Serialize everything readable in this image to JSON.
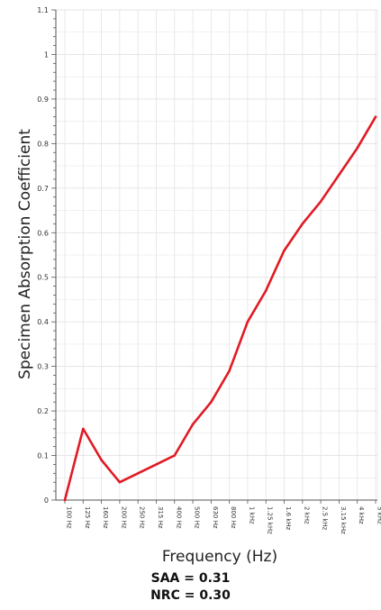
{
  "chart_data": {
    "type": "line",
    "title": "",
    "xlabel": "Frequency (Hz)",
    "ylabel": "Specimen Absorption Coefficient",
    "categories": [
      "100 Hz",
      "125 Hz",
      "160 Hz",
      "200 Hz",
      "250 Hz",
      "315 Hz",
      "400 Hz",
      "500 Hz",
      "630 Hz",
      "800 Hz",
      "1 kHz",
      "1.25 kHz",
      "1.6 kHz",
      "2 kHz",
      "2.5 kHz",
      "3.15 kHz",
      "4 kHz",
      "5 kHz"
    ],
    "series": [
      {
        "values": [
          0.0,
          0.16,
          0.09,
          0.04,
          0.06,
          0.08,
          0.1,
          0.17,
          0.22,
          0.29,
          0.4,
          0.47,
          0.56,
          0.62,
          0.67,
          0.73,
          0.79,
          0.86
        ]
      }
    ],
    "ylim": [
      0,
      1.1
    ],
    "yticks": [
      "0",
      "0.1",
      "0.2",
      "0.3",
      "0.4",
      "0.5",
      "0.6",
      "0.7",
      "0.8",
      "0.9",
      "1",
      "1.1"
    ],
    "ytick_values": [
      0,
      0.1,
      0.2,
      0.3,
      0.4,
      0.5,
      0.6,
      0.7,
      0.8,
      0.9,
      1.0,
      1.1
    ],
    "grid": true,
    "line_color": "#e01b24",
    "grid_color": "#e3e3e3"
  },
  "metrics": {
    "saa": "SAA = 0.31",
    "nrc": "NRC = 0.30"
  }
}
